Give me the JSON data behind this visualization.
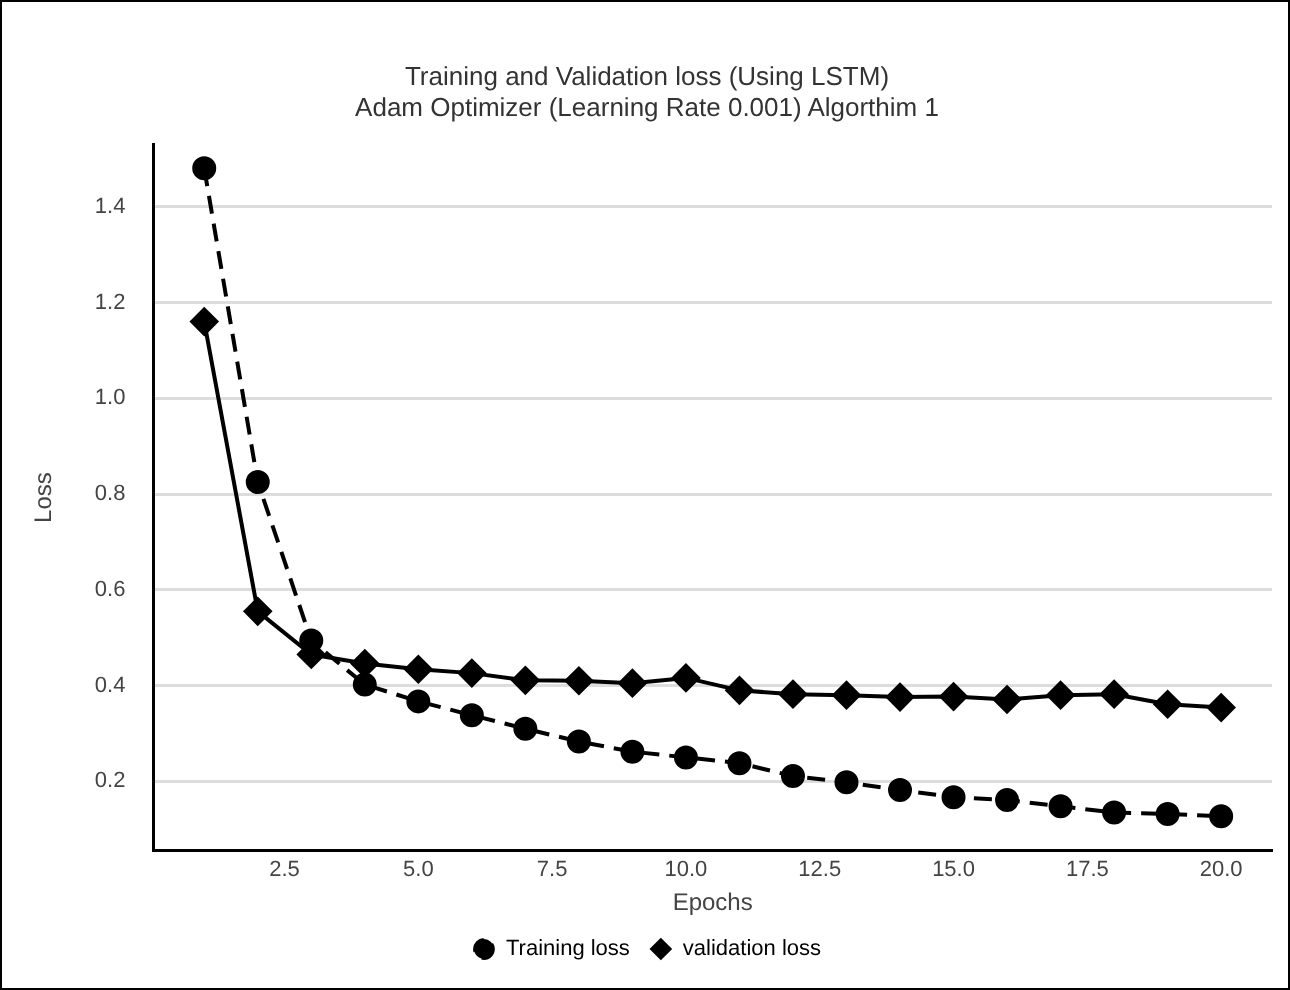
{
  "chart_data": {
    "type": "line",
    "title": "Training and Validation loss (Using LSTM)",
    "subtitle": "Adam Optimizer (Learning Rate 0.001) Algorthim 1",
    "xlabel": "Epochs",
    "ylabel": "Loss",
    "x": [
      1,
      2,
      3,
      4,
      5,
      6,
      7,
      8,
      9,
      10,
      11,
      12,
      13,
      14,
      15,
      16,
      17,
      18,
      19,
      20
    ],
    "xlim": [
      0.05,
      20.95
    ],
    "xticks": [
      {
        "value": 2.5,
        "label": "2.5"
      },
      {
        "value": 5,
        "label": "5.0"
      },
      {
        "value": 7.5,
        "label": "7.5"
      },
      {
        "value": 10,
        "label": "10.0"
      },
      {
        "value": 12.5,
        "label": "12.5"
      },
      {
        "value": 15,
        "label": "15.0"
      },
      {
        "value": 17.5,
        "label": "17.5"
      },
      {
        "value": 20,
        "label": "20.0"
      }
    ],
    "ylim": [
      0.055,
      1.53
    ],
    "yticks": [
      {
        "value": 0.2,
        "label": "0.2"
      },
      {
        "value": 0.4,
        "label": "0.4"
      },
      {
        "value": 0.6,
        "label": "0.6"
      },
      {
        "value": 0.8,
        "label": "0.8"
      },
      {
        "value": 1,
        "label": "1.0"
      },
      {
        "value": 1.2,
        "label": "1.2"
      },
      {
        "value": 1.4,
        "label": "1.4"
      }
    ],
    "grid": "y",
    "legend": "bottom",
    "series": [
      {
        "name": "Training loss",
        "color": "#000000",
        "marker": "circle",
        "line_style": "dashed",
        "values": [
          1.48,
          0.825,
          0.494,
          0.402,
          0.367,
          0.338,
          0.31,
          0.283,
          0.262,
          0.25,
          0.238,
          0.211,
          0.198,
          0.182,
          0.167,
          0.161,
          0.148,
          0.135,
          0.132,
          0.127
        ]
      },
      {
        "name": "validation loss",
        "color": "#000000",
        "marker": "diamond",
        "line_style": "solid",
        "values": [
          1.16,
          0.555,
          0.465,
          0.446,
          0.434,
          0.426,
          0.411,
          0.41,
          0.405,
          0.416,
          0.39,
          0.382,
          0.38,
          0.376,
          0.377,
          0.371,
          0.38,
          0.382,
          0.361,
          0.354
        ]
      }
    ]
  }
}
